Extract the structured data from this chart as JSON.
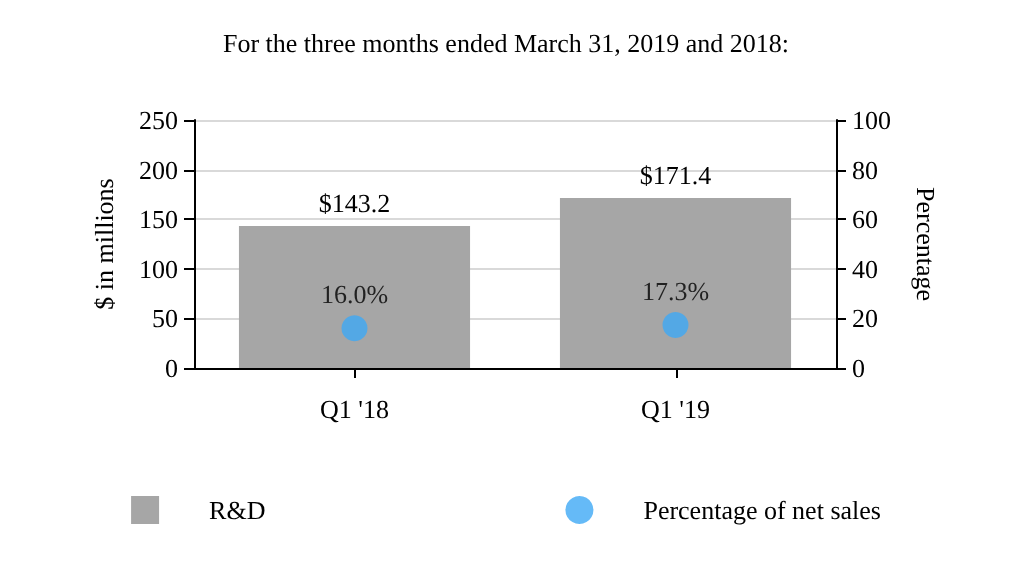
{
  "chart_data": {
    "type": "bar",
    "title": "For the three months ended March 31, 2019 and 2018:",
    "ylabel": "$ in millions",
    "y2label": "Percentage",
    "categories": [
      "Q1 '18",
      "Q1 '19"
    ],
    "series": [
      {
        "name": "R&D",
        "color": "#a6a6a6",
        "values": [
          143.2,
          171.4
        ],
        "value_labels": [
          "$143.2",
          "$171.4"
        ]
      },
      {
        "name": "Percentage of net sales",
        "type": "scatter",
        "axis": "y2",
        "color": "#3fa9f5",
        "values": [
          16.0,
          17.3
        ],
        "value_labels": [
          "16.0%",
          "17.3%"
        ]
      }
    ],
    "ylim": [
      0,
      250
    ],
    "yticks": [
      0,
      50,
      100,
      150,
      200,
      250
    ],
    "y2lim": [
      0,
      100
    ],
    "y2ticks": [
      0,
      20,
      40,
      60,
      80,
      100
    ],
    "grid": "y",
    "legend": "bottom",
    "marker": "circle"
  }
}
